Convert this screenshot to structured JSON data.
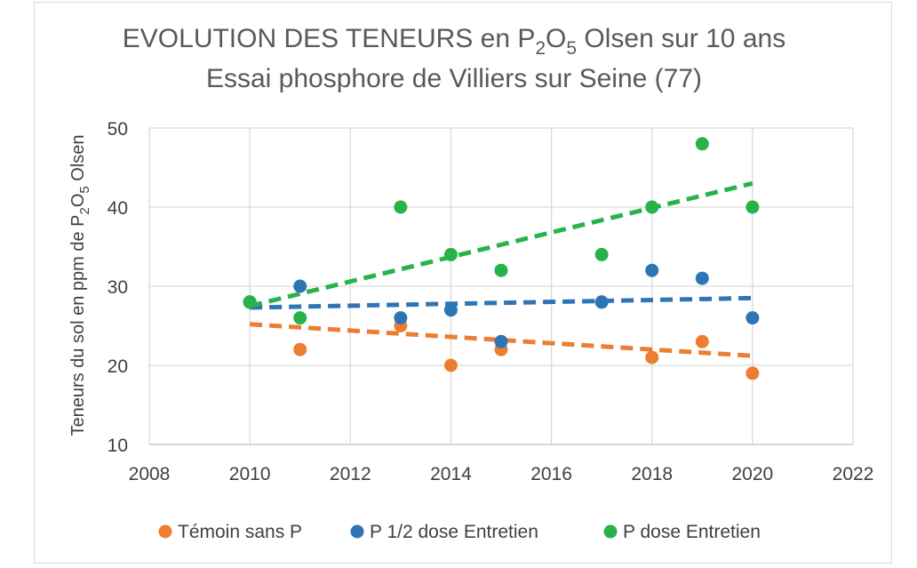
{
  "chart_data": {
    "type": "scatter",
    "title_line1_parts": [
      "EVOLUTION DES TENEURS en P",
      "2",
      "O",
      "5",
      " Olsen sur 10 ans"
    ],
    "title_line2": "Essai phosphore de Villiers sur Seine (77)",
    "ylabel_parts": [
      "Teneurs du sol en ppm de P",
      "2",
      "O",
      "5",
      " Olsen"
    ],
    "xlabel": "",
    "xlim": [
      2008,
      2022
    ],
    "ylim": [
      10,
      50
    ],
    "x_ticks": [
      2008,
      2010,
      2012,
      2014,
      2016,
      2018,
      2020,
      2022
    ],
    "y_ticks": [
      10,
      20,
      30,
      40,
      50
    ],
    "grid": true,
    "legend_position": "bottom",
    "series": [
      {
        "name": "Témoin sans P",
        "color": "#ed7d31",
        "x": [
          2010,
          2011,
          2013,
          2014,
          2015,
          2017,
          2018,
          2019,
          2020
        ],
        "y": [
          28,
          22,
          25,
          20,
          22,
          28,
          21,
          23,
          19
        ],
        "trendline": {
          "x": [
            2010,
            2020
          ],
          "y": [
            25.2,
            21.2
          ]
        }
      },
      {
        "name": "P 1/2 dose Entretien",
        "color": "#2e75b6",
        "x": [
          2010,
          2011,
          2013,
          2014,
          2015,
          2017,
          2018,
          2019,
          2020
        ],
        "y": [
          28,
          30,
          26,
          27,
          23,
          28,
          32,
          31,
          26
        ],
        "trendline": {
          "x": [
            2010,
            2020
          ],
          "y": [
            27.3,
            28.5
          ]
        }
      },
      {
        "name": "P dose Entretien",
        "color": "#27b24a",
        "x": [
          2010,
          2011,
          2013,
          2014,
          2015,
          2017,
          2018,
          2019,
          2020
        ],
        "y": [
          28,
          26,
          40,
          34,
          32,
          34,
          40,
          48,
          40
        ],
        "trendline": {
          "x": [
            2010,
            2020
          ],
          "y": [
            27.5,
            43.0
          ]
        }
      }
    ]
  }
}
